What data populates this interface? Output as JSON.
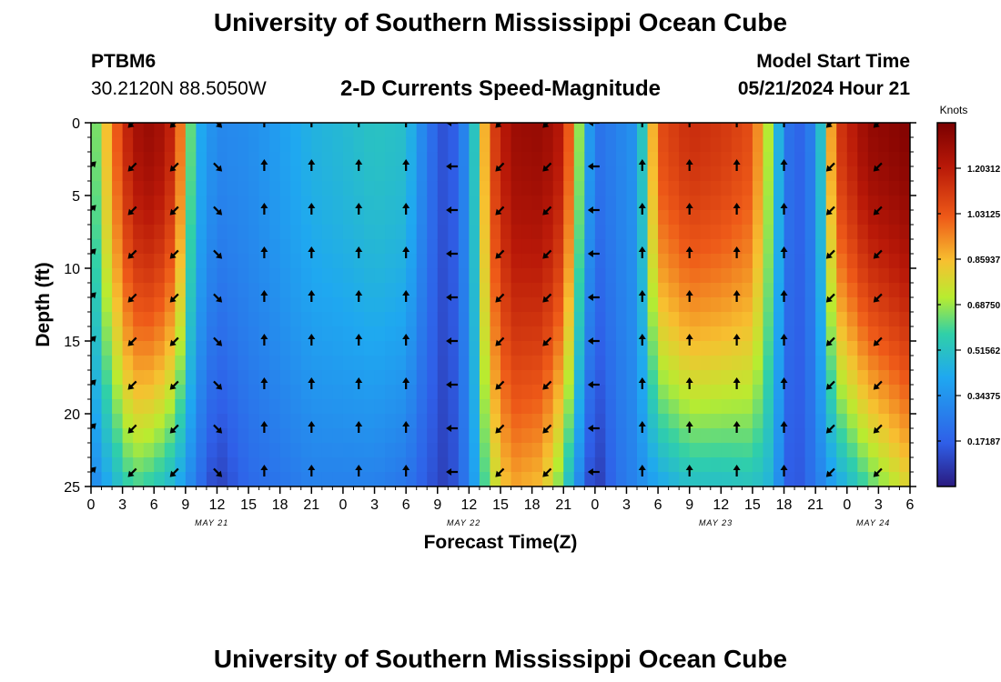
{
  "header": {
    "title": "University of Southern Mississippi Ocean Cube",
    "station_id": "PTBM6",
    "station_coords": "30.2120N  88.5050W",
    "model_start_label": "Model Start Time",
    "model_start_value": "05/21/2024 Hour 21"
  },
  "footer": {
    "title": "University of Southern Mississippi Ocean Cube"
  },
  "chart_data": {
    "type": "heatmap",
    "title": "2-D Currents Speed-Magnitude",
    "xlabel": "Forecast Time(Z)",
    "ylabel": "Depth (ft)",
    "ylim": [
      0,
      25
    ],
    "xlim_hours_from_may21_00": [
      0,
      78
    ],
    "y_ticks": [
      "0",
      "5",
      "10",
      "15",
      "20",
      "25"
    ],
    "x_tick_labels": [
      "0",
      "3",
      "6",
      "9",
      "12",
      "15",
      "18",
      "21",
      "0",
      "3",
      "6",
      "9",
      "12",
      "15",
      "18",
      "21",
      "0",
      "3",
      "6",
      "9",
      "12",
      "15",
      "18",
      "21",
      "0",
      "3",
      "6"
    ],
    "day_labels": [
      {
        "text": "MAY 21",
        "hour": 11.5
      },
      {
        "text": "MAY 22",
        "hour": 35.5
      },
      {
        "text": "MAY 23",
        "hour": 59.5
      },
      {
        "text": "MAY 24",
        "hour": 74.5
      }
    ],
    "colorbar": {
      "unit": "Knots",
      "range": [
        0.0,
        1.375
      ],
      "ticks": [
        "0.17187",
        "0.34375",
        "0.51562",
        "0.68750",
        "0.85937",
        "1.03125",
        "1.20312"
      ],
      "colormap": "jet"
    },
    "speed_profile_by_hour": [
      {
        "h": 0,
        "surface": 0.55,
        "bottom": 0.28
      },
      {
        "h": 2,
        "surface": 0.95,
        "bottom": 0.45
      },
      {
        "h": 4,
        "surface": 1.25,
        "bottom": 0.6
      },
      {
        "h": 6,
        "surface": 1.3,
        "bottom": 0.55
      },
      {
        "h": 8,
        "surface": 1.15,
        "bottom": 0.45
      },
      {
        "h": 10,
        "surface": 0.45,
        "bottom": 0.25
      },
      {
        "h": 12,
        "surface": 0.3,
        "bottom": 0.08
      },
      {
        "h": 15,
        "surface": 0.32,
        "bottom": 0.2
      },
      {
        "h": 18,
        "surface": 0.38,
        "bottom": 0.24
      },
      {
        "h": 21,
        "surface": 0.45,
        "bottom": 0.28
      },
      {
        "h": 24,
        "surface": 0.48,
        "bottom": 0.28
      },
      {
        "h": 27,
        "surface": 0.52,
        "bottom": 0.28
      },
      {
        "h": 30,
        "surface": 0.5,
        "bottom": 0.24
      },
      {
        "h": 32,
        "surface": 0.25,
        "bottom": 0.15
      },
      {
        "h": 34,
        "surface": 0.1,
        "bottom": 0.08
      },
      {
        "h": 36,
        "surface": 0.35,
        "bottom": 0.28
      },
      {
        "h": 38,
        "surface": 1.05,
        "bottom": 0.7
      },
      {
        "h": 40,
        "surface": 1.28,
        "bottom": 0.9
      },
      {
        "h": 43,
        "surface": 1.3,
        "bottom": 0.85
      },
      {
        "h": 45,
        "surface": 1.2,
        "bottom": 0.6
      },
      {
        "h": 47,
        "surface": 0.5,
        "bottom": 0.2
      },
      {
        "h": 48,
        "surface": 0.22,
        "bottom": 0.05
      },
      {
        "h": 50,
        "surface": 0.28,
        "bottom": 0.22
      },
      {
        "h": 52,
        "surface": 0.35,
        "bottom": 0.3
      },
      {
        "h": 54,
        "surface": 1.05,
        "bottom": 0.4
      },
      {
        "h": 57,
        "surface": 1.15,
        "bottom": 0.5
      },
      {
        "h": 60,
        "surface": 1.12,
        "bottom": 0.5
      },
      {
        "h": 63,
        "surface": 1.05,
        "bottom": 0.52
      },
      {
        "h": 65,
        "surface": 0.6,
        "bottom": 0.45
      },
      {
        "h": 66,
        "surface": 0.3,
        "bottom": 0.2
      },
      {
        "h": 67,
        "surface": 0.15,
        "bottom": 0.12
      },
      {
        "h": 69,
        "surface": 0.3,
        "bottom": 0.25
      },
      {
        "h": 71,
        "surface": 1.1,
        "bottom": 0.4
      },
      {
        "h": 74,
        "surface": 1.3,
        "bottom": 0.6
      },
      {
        "h": 78,
        "surface": 1.35,
        "bottom": 0.8
      }
    ],
    "vector_grid": {
      "hours": [
        0,
        4,
        8,
        12,
        16.5,
        21,
        25.5,
        30,
        34.5,
        39,
        43.5,
        48,
        52.5,
        57,
        61.5,
        66,
        70.5,
        75
      ],
      "depths_ft": [
        0,
        3,
        6,
        9,
        12,
        15,
        18,
        21,
        24
      ],
      "direction_deg_by_column": [
        45,
        225,
        225,
        135,
        0,
        0,
        0,
        0,
        270,
        225,
        225,
        270,
        0,
        0,
        0,
        0,
        225,
        225
      ]
    }
  }
}
